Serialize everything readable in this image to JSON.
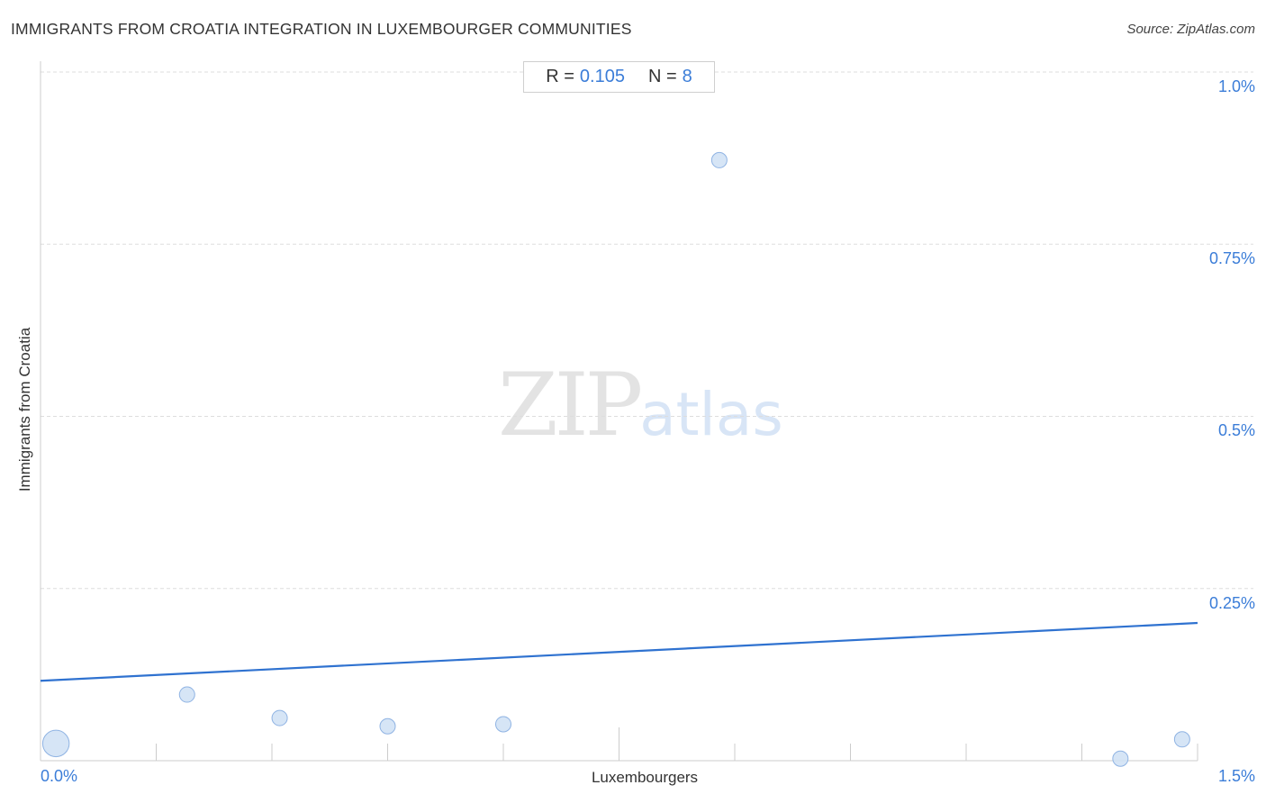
{
  "header": {
    "title": "IMMIGRANTS FROM CROATIA INTEGRATION IN LUXEMBOURGER COMMUNITIES",
    "source": "Source: ZipAtlas.com"
  },
  "stats": {
    "r_label": "R =",
    "r_value": "0.105",
    "n_label": "N =",
    "n_value": "8"
  },
  "watermark": {
    "zip": "ZIP",
    "atlas": "atlas"
  },
  "colors": {
    "accent": "#3b7dd8",
    "point_fill": "#cfe0f5",
    "point_stroke": "#8fb3e3",
    "trend": "#2f72d0"
  },
  "chart_data": {
    "type": "scatter",
    "xlabel": "Luxembourgers",
    "ylabel": "Immigrants from Croatia",
    "xlim": [
      0,
      1.5
    ],
    "ylim": [
      0,
      1.0
    ],
    "x_tick_labels": [
      "0.0%",
      "1.5%"
    ],
    "y_tick_labels": [
      {
        "value": 1.0,
        "label": "1.0%"
      },
      {
        "value": 0.75,
        "label": "0.75%"
      },
      {
        "value": 0.5,
        "label": "0.5%"
      },
      {
        "value": 0.25,
        "label": "0.25%"
      }
    ],
    "grid": true,
    "points": [
      {
        "x": 0.02,
        "y": 0.025,
        "weight": 3
      },
      {
        "x": 0.19,
        "y": 0.096,
        "weight": 1
      },
      {
        "x": 0.31,
        "y": 0.062,
        "weight": 1
      },
      {
        "x": 0.45,
        "y": 0.05,
        "weight": 1
      },
      {
        "x": 0.6,
        "y": 0.053,
        "weight": 1
      },
      {
        "x": 0.88,
        "y": 0.872,
        "weight": 1
      },
      {
        "x": 1.4,
        "y": 0.003,
        "weight": 1
      },
      {
        "x": 1.48,
        "y": 0.031,
        "weight": 1
      }
    ],
    "trendline": {
      "x": [
        0.0,
        1.5
      ],
      "y": [
        0.116,
        0.2
      ]
    }
  }
}
